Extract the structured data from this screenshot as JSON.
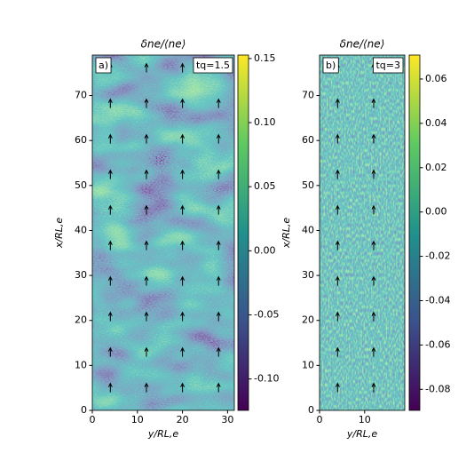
{
  "chart_data": [
    {
      "type": "heatmap",
      "title": "δne/⟨ne⟩",
      "panel_label": "a)",
      "annotation": "tq=1.5",
      "xlabel": "y/RL,e",
      "ylabel": "x/RL,e",
      "xlim": [
        0,
        31.5
      ],
      "xticks": [
        0,
        10,
        20,
        30
      ],
      "ylim": [
        0,
        79
      ],
      "yticks": [
        0,
        10,
        20,
        30,
        40,
        50,
        60,
        70
      ],
      "colormap": "viridis",
      "clim": [
        -0.1245,
        0.1527
      ],
      "cticks": [
        0.15,
        {
          "value": 0.1,
          "label": "0.10"
        },
        0.05,
        {
          "value": 0,
          "label": "0.00"
        },
        -0.05,
        {
          "value": -0.1,
          "label": "-0.10"
        }
      ]
    },
    {
      "type": "heatmap",
      "title": "δne/⟨ne⟩",
      "panel_label": "b)",
      "annotation": "tq=3",
      "xlabel": "y/RL,e",
      "ylabel": "x/RL,e",
      "xlim": [
        0,
        18.9
      ],
      "xticks": [
        0,
        10
      ],
      "ylim": [
        0,
        79
      ],
      "yticks": [
        0,
        10,
        20,
        30,
        40,
        50,
        60,
        70
      ],
      "colormap": "viridis",
      "clim": [
        -0.0895,
        0.0708
      ],
      "cticks": [
        0.06,
        0.04,
        0.02,
        {
          "value": 0,
          "label": "0.00"
        },
        -0.02,
        -0.04,
        -0.06,
        -0.08
      ]
    }
  ]
}
